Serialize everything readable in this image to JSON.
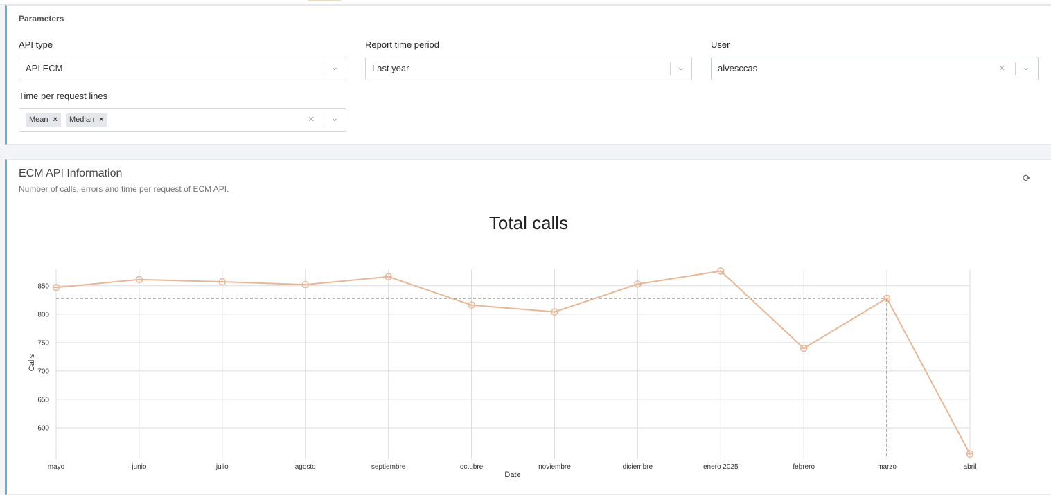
{
  "parameters": {
    "title": "Parameters",
    "api_type": {
      "label": "API type",
      "value": "API ECM"
    },
    "report_period": {
      "label": "Report time period",
      "value": "Last year"
    },
    "user": {
      "label": "User",
      "value": "alvesccas"
    },
    "time_lines": {
      "label": "Time per request lines",
      "tags": [
        "Mean",
        "Median"
      ]
    }
  },
  "info": {
    "title": "ECM API Information",
    "subtitle": "Number of calls, errors and time per request of ECM API."
  },
  "colors": {
    "line": "#e8b896",
    "accent": "#6fa8c9",
    "grid": "#dddddd"
  },
  "chart_data": {
    "type": "line",
    "title": "Total calls",
    "xlabel": "Date",
    "ylabel": "Calls",
    "categories": [
      "mayo",
      "junio",
      "julio",
      "agosto",
      "septiembre",
      "octubre",
      "noviembre",
      "diciembre",
      "enero 2025",
      "febrero",
      "marzo",
      "abril"
    ],
    "series": [
      {
        "values": [
          847,
          861,
          857,
          852,
          866,
          816,
          804,
          853,
          876,
          740,
          828,
          554
        ]
      }
    ],
    "yticks": [
      600,
      650,
      700,
      750,
      800,
      850
    ],
    "ylim": [
      550,
      879
    ],
    "grid": true,
    "hover": {
      "category": "marzo",
      "value": 828
    }
  }
}
